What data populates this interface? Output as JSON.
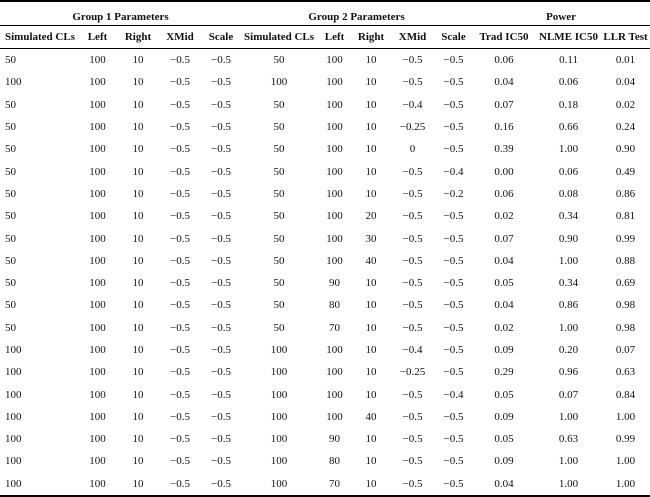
{
  "groups": {
    "group1": "Group 1 Parameters",
    "group2": "Group 2 Parameters",
    "power": "Power"
  },
  "columns": [
    "Simulated CLs",
    "Left",
    "Right",
    "XMid",
    "Scale",
    "Simulated CLs",
    "Left",
    "Right",
    "XMid",
    "Scale",
    "Trad IC50",
    "NLME IC50",
    "LLR Test"
  ],
  "rows": [
    [
      "50",
      "100",
      "10",
      "−0.5",
      "−0.5",
      "50",
      "100",
      "10",
      "−0.5",
      "−0.5",
      "0.06",
      "0.11",
      "0.01"
    ],
    [
      "100",
      "100",
      "10",
      "−0.5",
      "−0.5",
      "100",
      "100",
      "10",
      "−0.5",
      "−0.5",
      "0.04",
      "0.06",
      "0.04"
    ],
    [
      "50",
      "100",
      "10",
      "−0.5",
      "−0.5",
      "50",
      "100",
      "10",
      "−0.4",
      "−0.5",
      "0.07",
      "0.18",
      "0.02"
    ],
    [
      "50",
      "100",
      "10",
      "−0.5",
      "−0.5",
      "50",
      "100",
      "10",
      "−0.25",
      "−0.5",
      "0.16",
      "0.66",
      "0.24"
    ],
    [
      "50",
      "100",
      "10",
      "−0.5",
      "−0.5",
      "50",
      "100",
      "10",
      "0",
      "−0.5",
      "0.39",
      "1.00",
      "0.90"
    ],
    [
      "50",
      "100",
      "10",
      "−0.5",
      "−0.5",
      "50",
      "100",
      "10",
      "−0.5",
      "−0.4",
      "0.00",
      "0.06",
      "0.49"
    ],
    [
      "50",
      "100",
      "10",
      "−0.5",
      "−0.5",
      "50",
      "100",
      "10",
      "−0.5",
      "−0.2",
      "0.06",
      "0.08",
      "0.86"
    ],
    [
      "50",
      "100",
      "10",
      "−0.5",
      "−0.5",
      "50",
      "100",
      "20",
      "−0.5",
      "−0.5",
      "0.02",
      "0.34",
      "0.81"
    ],
    [
      "50",
      "100",
      "10",
      "−0.5",
      "−0.5",
      "50",
      "100",
      "30",
      "−0.5",
      "−0.5",
      "0.07",
      "0.90",
      "0.99"
    ],
    [
      "50",
      "100",
      "10",
      "−0.5",
      "−0.5",
      "50",
      "100",
      "40",
      "−0.5",
      "−0.5",
      "0.04",
      "1.00",
      "0.88"
    ],
    [
      "50",
      "100",
      "10",
      "−0.5",
      "−0.5",
      "50",
      "90",
      "10",
      "−0.5",
      "−0.5",
      "0.05",
      "0.34",
      "0.69"
    ],
    [
      "50",
      "100",
      "10",
      "−0.5",
      "−0.5",
      "50",
      "80",
      "10",
      "−0.5",
      "−0.5",
      "0.04",
      "0.86",
      "0.98"
    ],
    [
      "50",
      "100",
      "10",
      "−0.5",
      "−0.5",
      "50",
      "70",
      "10",
      "−0.5",
      "−0.5",
      "0.02",
      "1.00",
      "0.98"
    ],
    [
      "100",
      "100",
      "10",
      "−0.5",
      "−0.5",
      "100",
      "100",
      "10",
      "−0.4",
      "−0.5",
      "0.09",
      "0.20",
      "0.07"
    ],
    [
      "100",
      "100",
      "10",
      "−0.5",
      "−0.5",
      "100",
      "100",
      "10",
      "−0.25",
      "−0.5",
      "0.29",
      "0.96",
      "0.63"
    ],
    [
      "100",
      "100",
      "10",
      "−0.5",
      "−0.5",
      "100",
      "100",
      "10",
      "−0.5",
      "−0.4",
      "0.05",
      "0.07",
      "0.84"
    ],
    [
      "100",
      "100",
      "10",
      "−0.5",
      "−0.5",
      "100",
      "100",
      "40",
      "−0.5",
      "−0.5",
      "0.09",
      "1.00",
      "1.00"
    ],
    [
      "100",
      "100",
      "10",
      "−0.5",
      "−0.5",
      "100",
      "90",
      "10",
      "−0.5",
      "−0.5",
      "0.05",
      "0.63",
      "0.99"
    ],
    [
      "100",
      "100",
      "10",
      "−0.5",
      "−0.5",
      "100",
      "80",
      "10",
      "−0.5",
      "−0.5",
      "0.09",
      "1.00",
      "1.00"
    ],
    [
      "100",
      "100",
      "10",
      "−0.5",
      "−0.5",
      "100",
      "70",
      "10",
      "−0.5",
      "−0.5",
      "0.04",
      "1.00",
      "1.00"
    ]
  ]
}
